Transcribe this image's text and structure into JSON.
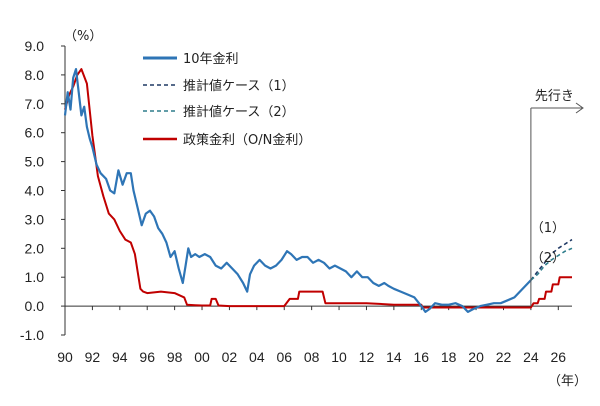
{
  "chart_data": {
    "type": "line",
    "y_unit_label": "（%）",
    "x_unit_label": "（年）",
    "ylim": [
      -1.0,
      9.0
    ],
    "yticks": [
      "9.0",
      "8.0",
      "7.0",
      "6.0",
      "5.0",
      "4.0",
      "3.0",
      "2.0",
      "1.0",
      "0.0",
      "-1.0"
    ],
    "xlim": [
      1990,
      2027
    ],
    "xticks": [
      "90",
      "92",
      "94",
      "96",
      "98",
      "00",
      "02",
      "04",
      "06",
      "08",
      "10",
      "12",
      "14",
      "16",
      "18",
      "20",
      "22",
      "24",
      "26"
    ],
    "forecast_label": "先行き",
    "forecast_start": 2024,
    "grid": false,
    "legend_position": "top-left",
    "colors": {
      "jgb10y": "#2e75b6",
      "forecast1": "#1f3864",
      "forecast2": "#2e7d8c",
      "policy": "#c00000"
    },
    "series": [
      {
        "name": "10年金利",
        "style": "solid",
        "x": [
          1990,
          1990.2,
          1990.4,
          1990.6,
          1990.8,
          1991.0,
          1991.2,
          1991.4,
          1991.6,
          1991.8,
          1992.0,
          1992.3,
          1992.6,
          1993.0,
          1993.3,
          1993.6,
          1993.9,
          1994.2,
          1994.5,
          1994.8,
          1995.0,
          1995.3,
          1995.6,
          1995.9,
          1996.2,
          1996.5,
          1996.8,
          1997.1,
          1997.4,
          1997.7,
          1998.0,
          1998.3,
          1998.6,
          1998.8,
          1999.0,
          1999.2,
          1999.5,
          1999.8,
          2000.2,
          2000.6,
          2001.0,
          2001.4,
          2001.8,
          2002.2,
          2002.6,
          2003.0,
          2003.3,
          2003.5,
          2003.8,
          2004.2,
          2004.6,
          2005.0,
          2005.4,
          2005.8,
          2006.2,
          2006.5,
          2006.9,
          2007.3,
          2007.7,
          2008.1,
          2008.5,
          2008.9,
          2009.3,
          2009.7,
          2010.1,
          2010.5,
          2010.9,
          2011.3,
          2011.7,
          2012.1,
          2012.5,
          2012.9,
          2013.3,
          2013.6,
          2014.0,
          2014.5,
          2015.0,
          2015.5,
          2016.0,
          2016.3,
          2016.6,
          2017.0,
          2017.5,
          2018.0,
          2018.5,
          2019.0,
          2019.4,
          2019.8,
          2020.3,
          2020.8,
          2021.3,
          2021.8,
          2022.3,
          2022.8,
          2023.2,
          2023.6,
          2024.0
        ],
        "y": [
          6.6,
          7.4,
          6.8,
          7.9,
          8.2,
          7.4,
          6.6,
          6.9,
          6.2,
          5.8,
          5.5,
          4.9,
          4.6,
          4.4,
          4.0,
          3.9,
          4.7,
          4.2,
          4.6,
          4.6,
          4.0,
          3.4,
          2.8,
          3.2,
          3.3,
          3.1,
          2.7,
          2.5,
          2.2,
          1.7,
          1.9,
          1.3,
          0.8,
          1.4,
          2.0,
          1.7,
          1.8,
          1.7,
          1.8,
          1.7,
          1.4,
          1.3,
          1.5,
          1.3,
          1.1,
          0.8,
          0.5,
          1.1,
          1.4,
          1.6,
          1.4,
          1.3,
          1.4,
          1.6,
          1.9,
          1.8,
          1.6,
          1.7,
          1.7,
          1.5,
          1.6,
          1.5,
          1.3,
          1.4,
          1.3,
          1.2,
          1.0,
          1.2,
          1.0,
          1.0,
          0.8,
          0.7,
          0.8,
          0.7,
          0.6,
          0.5,
          0.4,
          0.3,
          0.0,
          -0.2,
          -0.1,
          0.1,
          0.05,
          0.05,
          0.1,
          0.0,
          -0.2,
          -0.1,
          0.0,
          0.05,
          0.1,
          0.1,
          0.2,
          0.3,
          0.5,
          0.7,
          0.9
        ]
      },
      {
        "name": "推計値ケース（1）",
        "style": "dashed",
        "x": [
          2024.0,
          2024.5,
          2025.0,
          2025.5,
          2026.0,
          2026.5,
          2027.0
        ],
        "y": [
          0.9,
          1.2,
          1.5,
          1.8,
          2.0,
          2.15,
          2.3
        ]
      },
      {
        "name": "推計値ケース（2）",
        "style": "dashed",
        "x": [
          2024.0,
          2024.5,
          2025.0,
          2025.5,
          2026.0,
          2026.5,
          2027.0
        ],
        "y": [
          0.9,
          1.1,
          1.4,
          1.6,
          1.75,
          1.9,
          2.0
        ]
      },
      {
        "name": "政策金利（O/N金利）",
        "style": "solid",
        "x": [
          1990,
          1990.3,
          1990.6,
          1990.9,
          1991.2,
          1991.6,
          1992.0,
          1992.4,
          1992.8,
          1993.2,
          1993.6,
          1994.0,
          1994.4,
          1994.8,
          1995.1,
          1995.3,
          1995.5,
          1995.7,
          1996.0,
          1997.0,
          1998.0,
          1998.7,
          1998.9,
          1999.5,
          2000.0,
          2000.6,
          2000.7,
          2001.0,
          2001.2,
          2002.0,
          2003.0,
          2004.0,
          2005.0,
          2006.0,
          2006.4,
          2006.5,
          2007.0,
          2007.1,
          2008.0,
          2008.8,
          2009.0,
          2010.0,
          2012.0,
          2014.0,
          2016.0,
          2016.1,
          2018.0,
          2020.0,
          2022.0,
          2023.0,
          2024.0,
          2024.2,
          2024.5,
          2024.6,
          2025.0,
          2025.1,
          2025.5,
          2025.6,
          2026.0,
          2026.1,
          2027.0
        ],
        "y": [
          6.8,
          7.3,
          7.6,
          8.0,
          8.2,
          7.7,
          5.9,
          4.5,
          3.8,
          3.2,
          3.0,
          2.6,
          2.3,
          2.2,
          1.8,
          1.2,
          0.6,
          0.5,
          0.45,
          0.5,
          0.45,
          0.3,
          0.05,
          0.03,
          0.02,
          0.02,
          0.25,
          0.25,
          0.02,
          0.0,
          0.0,
          0.0,
          0.0,
          0.0,
          0.25,
          0.25,
          0.25,
          0.5,
          0.5,
          0.5,
          0.1,
          0.1,
          0.1,
          0.05,
          0.05,
          -0.05,
          -0.05,
          -0.05,
          -0.05,
          -0.05,
          -0.05,
          0.1,
          0.1,
          0.25,
          0.25,
          0.5,
          0.5,
          0.75,
          0.75,
          1.0,
          1.0
        ]
      }
    ]
  }
}
